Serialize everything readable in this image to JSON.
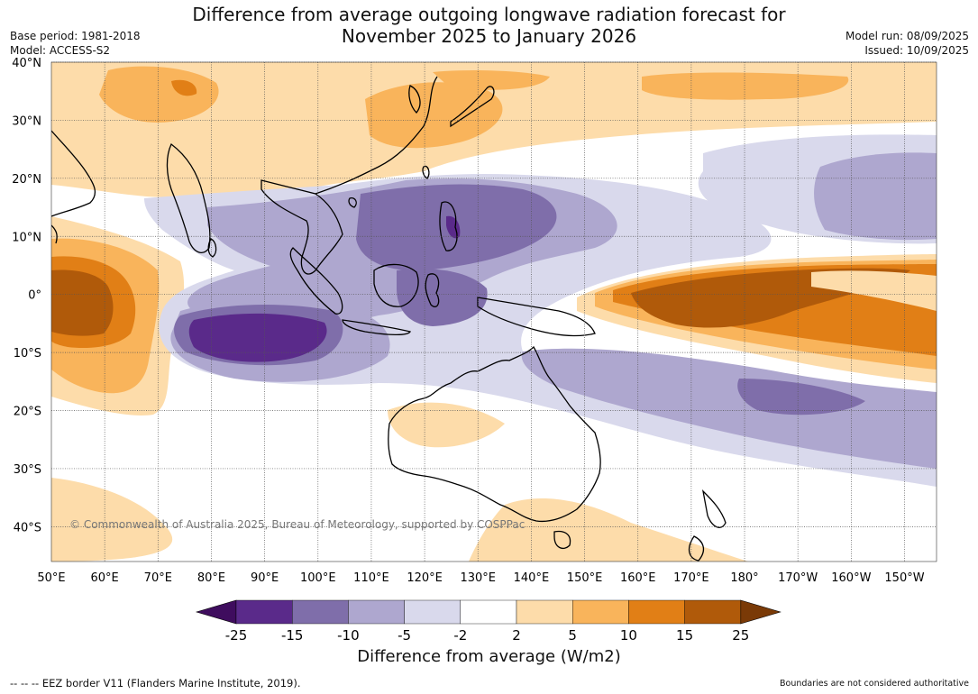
{
  "title": {
    "line1": "Difference from average outgoing longwave radiation forecast for",
    "line2": "November 2025 to January 2026"
  },
  "meta_left": {
    "base_period": "Base period: 1981-2018",
    "model": "Model: ACCESS-S2"
  },
  "meta_right": {
    "model_run": "Model run: 08/09/2025",
    "issued": "Issued: 10/09/2025"
  },
  "map": {
    "lat_labels": [
      "40°N",
      "30°N",
      "20°N",
      "10°N",
      "0°",
      "10°S",
      "20°S",
      "30°S",
      "40°S"
    ],
    "lat_values": [
      40,
      30,
      20,
      10,
      0,
      -10,
      -20,
      -30,
      -40
    ],
    "lon_labels": [
      "50°E",
      "60°E",
      "70°E",
      "80°E",
      "90°E",
      "100°E",
      "110°E",
      "120°E",
      "130°E",
      "140°E",
      "150°E",
      "160°E",
      "170°E",
      "180°",
      "170°W",
      "160°W",
      "150°W"
    ],
    "lon_values": [
      50,
      60,
      70,
      80,
      90,
      100,
      110,
      120,
      130,
      140,
      150,
      160,
      170,
      180,
      190,
      200,
      210
    ],
    "lon_range": [
      50,
      216
    ],
    "lat_range": [
      -46,
      40
    ],
    "copyright": "© Commonwealth of Australia 2025, Bureau of Meteorology, supported by COSPPac"
  },
  "colorbar": {
    "ticks": [
      "-25",
      "-15",
      "-10",
      "-5",
      "-2",
      "2",
      "5",
      "10",
      "15",
      "25"
    ],
    "colors": [
      "#3f0d5e",
      "#5a2a8a",
      "#7f6eaa",
      "#aea7cf",
      "#d9d9ec",
      "#ffffff",
      "#fddcaa",
      "#f9b45b",
      "#e17f16",
      "#b05a0a",
      "#7a3a07"
    ],
    "label": "Difference from average (W/m2)"
  },
  "footer": {
    "eez": "--  --  -- EEZ border V11 (Flanders Marine Institute, 2019).",
    "disclaimer": "Boundaries are not considered authoritative"
  }
}
